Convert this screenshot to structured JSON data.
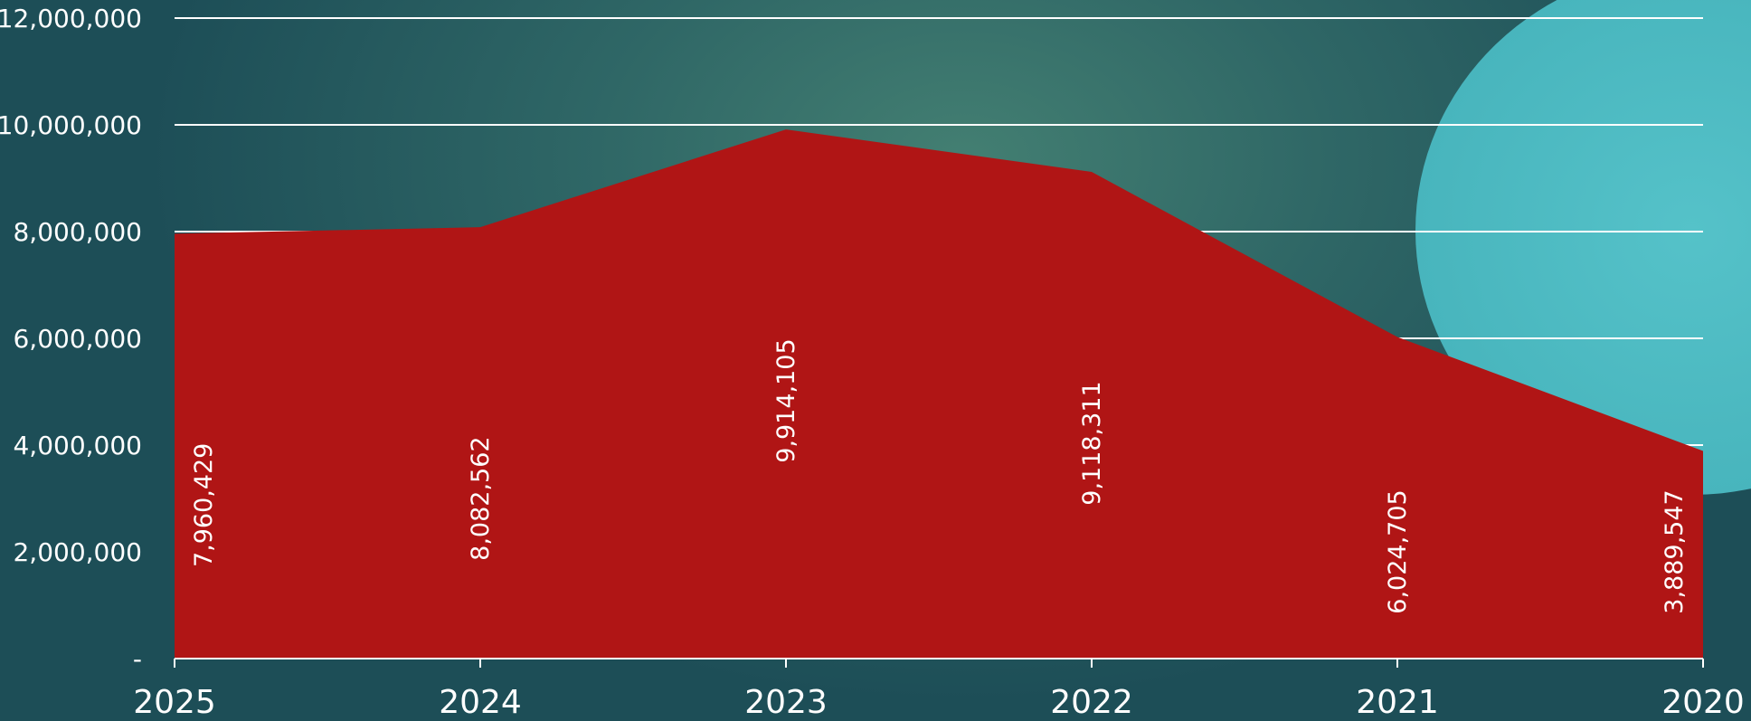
{
  "chart_data": {
    "type": "area",
    "categories": [
      "2025",
      "2024",
      "2023",
      "2022",
      "2021",
      "2020"
    ],
    "values": [
      7960429,
      8082562,
      9914105,
      9118311,
      6024705,
      3889547
    ],
    "data_labels": [
      "7,960,429",
      "8,082,562",
      "9,914,105",
      "9,118,311",
      "6,024,705",
      "3,889,547"
    ],
    "yticks": [
      0,
      2000000,
      4000000,
      6000000,
      8000000,
      10000000,
      12000000
    ],
    "ytick_labels": [
      "-",
      "2,000,000",
      "4,000,000",
      "6,000,000",
      "8,000,000",
      "10,000,000",
      "12,000,000"
    ],
    "ylim": [
      0,
      12000000
    ],
    "title": "",
    "xlabel": "",
    "ylabel": "",
    "grid": true,
    "legend": "none",
    "colors": {
      "area": "#b01515",
      "grid": "#ffffff",
      "text": "#ffffff",
      "decor_circle": "#4fbcc4"
    }
  }
}
